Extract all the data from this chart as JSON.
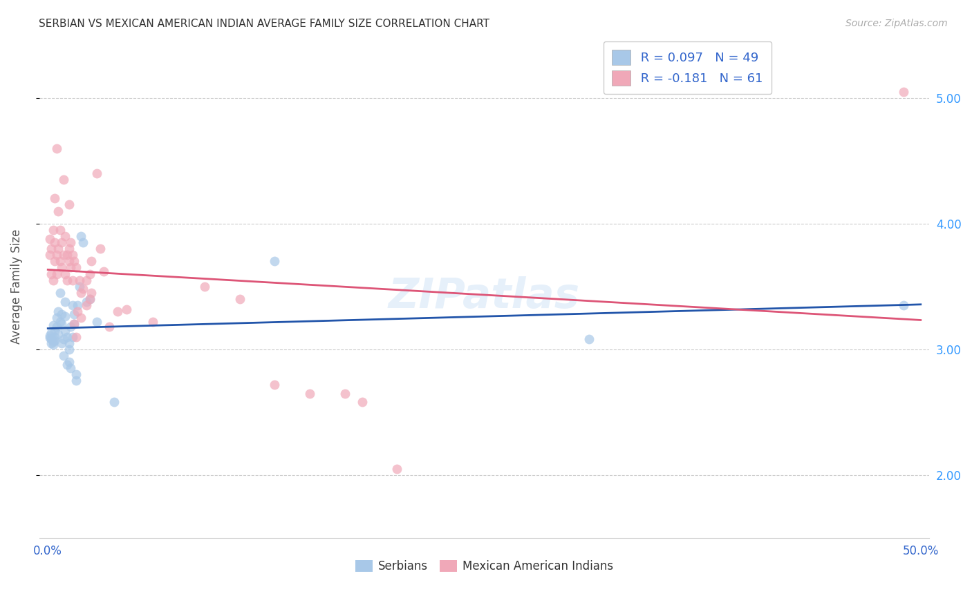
{
  "title": "SERBIAN VS MEXICAN AMERICAN INDIAN AVERAGE FAMILY SIZE CORRELATION CHART",
  "source": "Source: ZipAtlas.com",
  "ylabel": "Average Family Size",
  "watermark": "ZIPatlas",
  "legend_serbian_R": 0.097,
  "legend_serbian_N": 49,
  "legend_mexican_R": -0.181,
  "legend_mexican_N": 61,
  "serbian_color": "#a8c8e8",
  "mexican_color": "#f0a8b8",
  "serbian_line_color": "#2255aa",
  "mexican_line_color": "#dd5577",
  "legend_text_color": "#3366cc",
  "title_color": "#333333",
  "grid_color": "#cccccc",
  "background_color": "#ffffff",
  "serbian_scatter": [
    [
      0.001,
      3.11
    ],
    [
      0.001,
      3.09
    ],
    [
      0.002,
      3.05
    ],
    [
      0.002,
      3.13
    ],
    [
      0.002,
      3.08
    ],
    [
      0.003,
      3.06
    ],
    [
      0.003,
      3.04
    ],
    [
      0.003,
      3.19
    ],
    [
      0.004,
      3.15
    ],
    [
      0.004,
      3.1
    ],
    [
      0.004,
      3.07
    ],
    [
      0.005,
      3.25
    ],
    [
      0.005,
      3.18
    ],
    [
      0.006,
      3.3
    ],
    [
      0.006,
      3.12
    ],
    [
      0.007,
      3.45
    ],
    [
      0.007,
      3.22
    ],
    [
      0.008,
      3.2
    ],
    [
      0.008,
      3.28
    ],
    [
      0.008,
      3.05
    ],
    [
      0.009,
      2.95
    ],
    [
      0.009,
      3.08
    ],
    [
      0.01,
      3.38
    ],
    [
      0.01,
      3.15
    ],
    [
      0.01,
      3.26
    ],
    [
      0.011,
      3.1
    ],
    [
      0.011,
      2.88
    ],
    [
      0.012,
      3.05
    ],
    [
      0.012,
      2.9
    ],
    [
      0.012,
      3.0
    ],
    [
      0.013,
      2.85
    ],
    [
      0.013,
      3.18
    ],
    [
      0.014,
      3.35
    ],
    [
      0.014,
      3.1
    ],
    [
      0.015,
      3.28
    ],
    [
      0.015,
      3.2
    ],
    [
      0.016,
      2.8
    ],
    [
      0.016,
      2.75
    ],
    [
      0.017,
      3.35
    ],
    [
      0.018,
      3.5
    ],
    [
      0.019,
      3.9
    ],
    [
      0.02,
      3.85
    ],
    [
      0.022,
      3.38
    ],
    [
      0.024,
      3.4
    ],
    [
      0.028,
      3.22
    ],
    [
      0.038,
      2.58
    ],
    [
      0.13,
      3.7
    ],
    [
      0.31,
      3.08
    ],
    [
      0.49,
      3.35
    ]
  ],
  "mexican_scatter": [
    [
      0.001,
      3.75
    ],
    [
      0.001,
      3.88
    ],
    [
      0.002,
      3.6
    ],
    [
      0.002,
      3.8
    ],
    [
      0.003,
      3.95
    ],
    [
      0.003,
      3.55
    ],
    [
      0.004,
      4.2
    ],
    [
      0.004,
      3.85
    ],
    [
      0.004,
      3.7
    ],
    [
      0.005,
      4.6
    ],
    [
      0.005,
      3.75
    ],
    [
      0.005,
      3.6
    ],
    [
      0.006,
      4.1
    ],
    [
      0.006,
      3.8
    ],
    [
      0.007,
      3.95
    ],
    [
      0.007,
      3.7
    ],
    [
      0.008,
      3.85
    ],
    [
      0.008,
      3.65
    ],
    [
      0.009,
      4.35
    ],
    [
      0.009,
      3.75
    ],
    [
      0.01,
      3.9
    ],
    [
      0.01,
      3.6
    ],
    [
      0.011,
      3.75
    ],
    [
      0.011,
      3.55
    ],
    [
      0.012,
      4.15
    ],
    [
      0.012,
      3.8
    ],
    [
      0.012,
      3.7
    ],
    [
      0.013,
      3.85
    ],
    [
      0.013,
      3.65
    ],
    [
      0.014,
      3.75
    ],
    [
      0.014,
      3.55
    ],
    [
      0.015,
      3.7
    ],
    [
      0.015,
      3.2
    ],
    [
      0.016,
      3.65
    ],
    [
      0.016,
      3.1
    ],
    [
      0.017,
      3.3
    ],
    [
      0.018,
      3.55
    ],
    [
      0.019,
      3.45
    ],
    [
      0.019,
      3.25
    ],
    [
      0.02,
      3.48
    ],
    [
      0.022,
      3.55
    ],
    [
      0.022,
      3.35
    ],
    [
      0.024,
      3.6
    ],
    [
      0.024,
      3.4
    ],
    [
      0.025,
      3.45
    ],
    [
      0.025,
      3.7
    ],
    [
      0.028,
      4.4
    ],
    [
      0.03,
      3.8
    ],
    [
      0.032,
      3.62
    ],
    [
      0.035,
      3.18
    ],
    [
      0.04,
      3.3
    ],
    [
      0.045,
      3.32
    ],
    [
      0.06,
      3.22
    ],
    [
      0.09,
      3.5
    ],
    [
      0.11,
      3.4
    ],
    [
      0.13,
      2.72
    ],
    [
      0.15,
      2.65
    ],
    [
      0.17,
      2.65
    ],
    [
      0.18,
      2.58
    ],
    [
      0.2,
      2.05
    ],
    [
      0.49,
      5.05
    ]
  ],
  "xlim": [
    -0.005,
    0.505
  ],
  "ylim": [
    1.5,
    5.5
  ],
  "yticks": [
    2.0,
    3.0,
    4.0,
    5.0
  ],
  "trend_x_start": 0.0,
  "trend_x_end": 0.5
}
